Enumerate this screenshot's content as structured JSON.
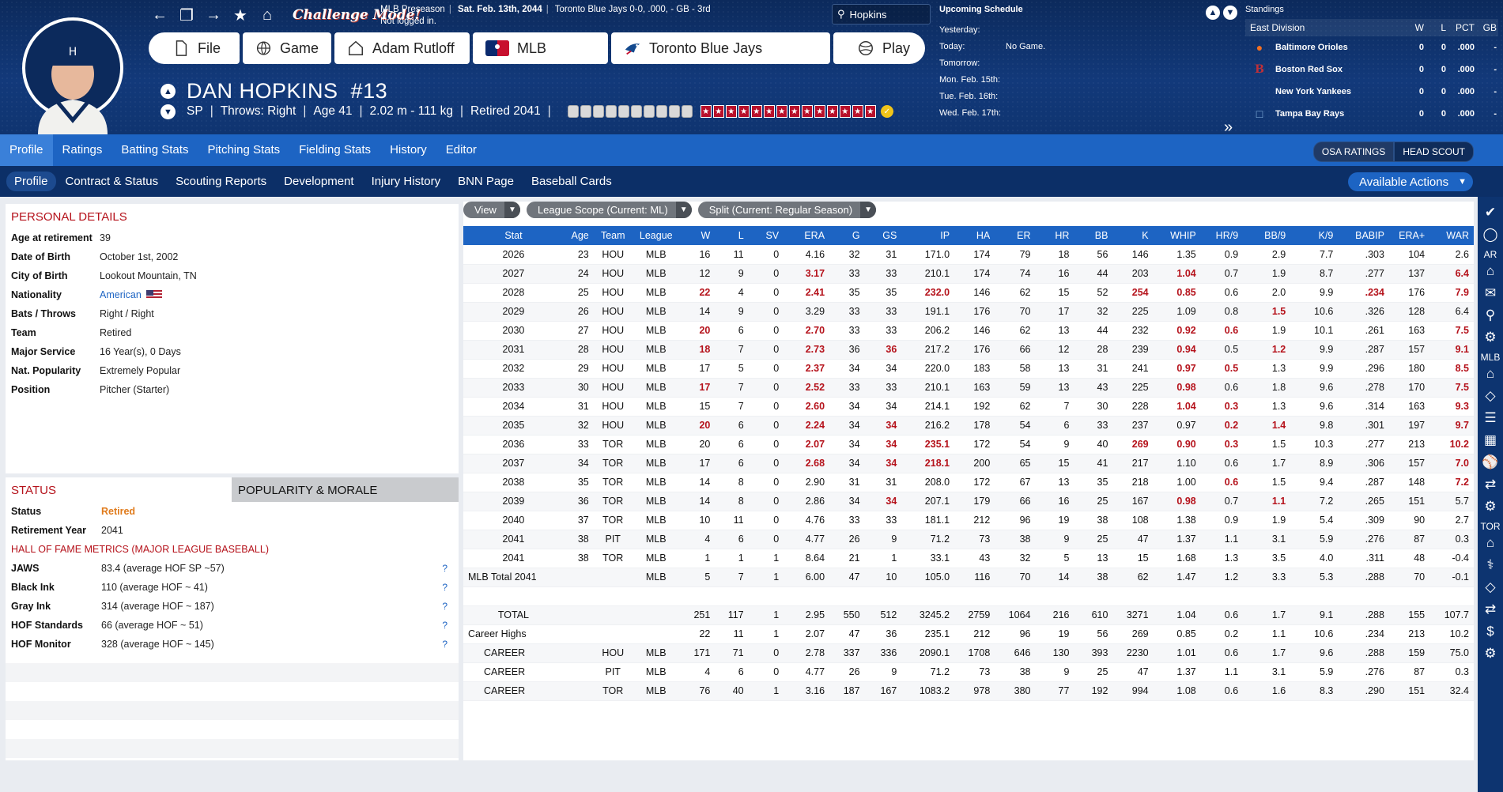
{
  "header": {
    "challenge_label": "Challenge Mode!",
    "info_league": "MLB Preseason",
    "info_date": "Sat. Feb. 13th, 2044",
    "info_team": "Toronto Blue Jays",
    "info_record": "0-0, .000, - GB - 3rd",
    "info_login": "Not logged in.",
    "buttons": {
      "file": "File",
      "game": "Game",
      "manager": "Adam Rutloff",
      "league": "MLB",
      "team": "Toronto Blue Jays",
      "play": "Play"
    },
    "search_value": "Hopkins"
  },
  "schedule": {
    "title": "Upcoming Schedule",
    "rows": [
      {
        "day": "Yesterday:",
        "game": ""
      },
      {
        "day": "Today:",
        "game": "No Game."
      },
      {
        "day": "Tomorrow:",
        "game": ""
      },
      {
        "day": "Mon. Feb. 15th:",
        "game": ""
      },
      {
        "day": "Tue. Feb. 16th:",
        "game": ""
      },
      {
        "day": "Wed. Feb. 17th:",
        "game": ""
      }
    ]
  },
  "standings": {
    "title": "Standings",
    "division": "East Division",
    "cols": [
      "W",
      "L",
      "PCT",
      "GB"
    ],
    "teams": [
      {
        "name": "Baltimore Orioles",
        "w": "0",
        "l": "0",
        "pct": ".000",
        "gb": "-"
      },
      {
        "name": "Boston Red Sox",
        "w": "0",
        "l": "0",
        "pct": ".000",
        "gb": "-"
      },
      {
        "name": "New York Yankees",
        "w": "0",
        "l": "0",
        "pct": ".000",
        "gb": "-"
      },
      {
        "name": "Tampa Bay Rays",
        "w": "0",
        "l": "0",
        "pct": ".000",
        "gb": "-"
      }
    ]
  },
  "player": {
    "name": "DAN HOPKINS",
    "number": "#13",
    "position": "SP",
    "throws": "Throws: Right",
    "age": "Age 41",
    "size": "2.02 m - 111 kg",
    "retired": "Retired 2041"
  },
  "tabs": {
    "main": [
      "Profile",
      "Ratings",
      "Batting Stats",
      "Pitching Stats",
      "Fielding Stats",
      "History",
      "Editor"
    ],
    "sub": [
      "Profile",
      "Contract & Status",
      "Scouting Reports",
      "Development",
      "Injury History",
      "BNN Page",
      "Baseball Cards"
    ],
    "osa": "OSA RATINGS",
    "scout": "HEAD SCOUT",
    "actions": "Available Actions"
  },
  "sidebar": {
    "ar": "AR",
    "mlb": "MLB",
    "tor": "TOR"
  },
  "personal": {
    "title": "PERSONAL DETAILS",
    "rows": [
      {
        "k": "Age at retirement",
        "v": "39"
      },
      {
        "k": "Date of Birth",
        "v": "October 1st, 2002"
      },
      {
        "k": "City of Birth",
        "v": "Lookout Mountain, TN"
      },
      {
        "k": "Nationality",
        "v": "American"
      },
      {
        "k": "Bats / Throws",
        "v": "Right / Right"
      },
      {
        "k": "Team",
        "v": "Retired"
      },
      {
        "k": "Major Service",
        "v": "16 Year(s), 0 Days"
      },
      {
        "k": "Nat. Popularity",
        "v": "Extremely Popular"
      },
      {
        "k": "Position",
        "v": "Pitcher (Starter)"
      }
    ]
  },
  "status": {
    "tab_status": "STATUS",
    "tab_pop": "POPULARITY & MORALE",
    "rows": [
      {
        "k": "Status",
        "v": "Retired"
      },
      {
        "k": "Retirement Year",
        "v": "2041"
      }
    ],
    "hof_title": "HALL OF FAME METRICS (MAJOR LEAGUE BASEBALL)",
    "hof": [
      {
        "k": "JAWS",
        "v": "83.4 (average HOF SP ~57)"
      },
      {
        "k": "Black Ink",
        "v": "110 (average HOF ~ 41)"
      },
      {
        "k": "Gray Ink",
        "v": "314 (average HOF ~ 187)"
      },
      {
        "k": "HOF Standards",
        "v": "66 (average HOF ~ 51)"
      },
      {
        "k": "HOF Monitor",
        "v": "328 (average HOF ~ 145)"
      }
    ],
    "q": "?"
  },
  "filters": {
    "view": "View",
    "scope": "League Scope  (Current: ML)",
    "split": "Split  (Current: Regular Season)"
  },
  "stats": {
    "columns": [
      "Stat",
      "Age",
      "Team",
      "League",
      "W",
      "L",
      "SV",
      "ERA",
      "G",
      "GS",
      "IP",
      "HA",
      "ER",
      "HR",
      "BB",
      "K",
      "WHIP",
      "HR/9",
      "BB/9",
      "K/9",
      "BABIP",
      "ERA+",
      "WAR"
    ],
    "rows": [
      {
        "c": [
          "2026",
          "23",
          "HOU",
          "MLB",
          "16",
          "11",
          "0",
          "4.16",
          "32",
          "31",
          "171.0",
          "174",
          "79",
          "18",
          "56",
          "146",
          "1.35",
          "0.9",
          "2.9",
          "7.7",
          ".303",
          "104",
          "2.6"
        ],
        "hl": []
      },
      {
        "c": [
          "2027",
          "24",
          "HOU",
          "MLB",
          "12",
          "9",
          "0",
          "3.17",
          "33",
          "33",
          "210.1",
          "174",
          "74",
          "16",
          "44",
          "203",
          "1.04",
          "0.7",
          "1.9",
          "8.7",
          ".277",
          "137",
          "6.4"
        ],
        "hl": [
          7,
          16,
          22
        ]
      },
      {
        "c": [
          "2028",
          "25",
          "HOU",
          "MLB",
          "22",
          "4",
          "0",
          "2.41",
          "35",
          "35",
          "232.0",
          "146",
          "62",
          "15",
          "52",
          "254",
          "0.85",
          "0.6",
          "2.0",
          "9.9",
          ".234",
          "176",
          "7.9"
        ],
        "hl": [
          4,
          7,
          10,
          15,
          16,
          20,
          22
        ]
      },
      {
        "c": [
          "2029",
          "26",
          "HOU",
          "MLB",
          "14",
          "9",
          "0",
          "3.29",
          "33",
          "33",
          "191.1",
          "176",
          "70",
          "17",
          "32",
          "225",
          "1.09",
          "0.8",
          "1.5",
          "10.6",
          ".326",
          "128",
          "6.4"
        ],
        "hl": [
          18
        ]
      },
      {
        "c": [
          "2030",
          "27",
          "HOU",
          "MLB",
          "20",
          "6",
          "0",
          "2.70",
          "33",
          "33",
          "206.2",
          "146",
          "62",
          "13",
          "44",
          "232",
          "0.92",
          "0.6",
          "1.9",
          "10.1",
          ".261",
          "163",
          "7.5"
        ],
        "hl": [
          4,
          7,
          16,
          17,
          22
        ]
      },
      {
        "c": [
          "2031",
          "28",
          "HOU",
          "MLB",
          "18",
          "7",
          "0",
          "2.73",
          "36",
          "36",
          "217.2",
          "176",
          "66",
          "12",
          "28",
          "239",
          "0.94",
          "0.5",
          "1.2",
          "9.9",
          ".287",
          "157",
          "9.1"
        ],
        "hl": [
          4,
          7,
          9,
          16,
          18,
          22
        ]
      },
      {
        "c": [
          "2032",
          "29",
          "HOU",
          "MLB",
          "17",
          "5",
          "0",
          "2.37",
          "34",
          "34",
          "220.0",
          "183",
          "58",
          "13",
          "31",
          "241",
          "0.97",
          "0.5",
          "1.3",
          "9.9",
          ".296",
          "180",
          "8.5"
        ],
        "hl": [
          7,
          16,
          17,
          22
        ]
      },
      {
        "c": [
          "2033",
          "30",
          "HOU",
          "MLB",
          "17",
          "7",
          "0",
          "2.52",
          "33",
          "33",
          "210.1",
          "163",
          "59",
          "13",
          "43",
          "225",
          "0.98",
          "0.6",
          "1.8",
          "9.6",
          ".278",
          "170",
          "7.5"
        ],
        "hl": [
          4,
          7,
          16,
          22
        ]
      },
      {
        "c": [
          "2034",
          "31",
          "HOU",
          "MLB",
          "15",
          "7",
          "0",
          "2.60",
          "34",
          "34",
          "214.1",
          "192",
          "62",
          "7",
          "30",
          "228",
          "1.04",
          "0.3",
          "1.3",
          "9.6",
          ".314",
          "163",
          "9.3"
        ],
        "hl": [
          7,
          16,
          17,
          22
        ]
      },
      {
        "c": [
          "2035",
          "32",
          "HOU",
          "MLB",
          "20",
          "6",
          "0",
          "2.24",
          "34",
          "34",
          "216.2",
          "178",
          "54",
          "6",
          "33",
          "237",
          "0.97",
          "0.2",
          "1.4",
          "9.8",
          ".301",
          "197",
          "9.7"
        ],
        "hl": [
          4,
          7,
          9,
          17,
          18,
          22
        ]
      },
      {
        "c": [
          "2036",
          "33",
          "TOR",
          "MLB",
          "20",
          "6",
          "0",
          "2.07",
          "34",
          "34",
          "235.1",
          "172",
          "54",
          "9",
          "40",
          "269",
          "0.90",
          "0.3",
          "1.5",
          "10.3",
          ".277",
          "213",
          "10.2"
        ],
        "hl": [
          7,
          9,
          10,
          15,
          16,
          17,
          22
        ]
      },
      {
        "c": [
          "2037",
          "34",
          "TOR",
          "MLB",
          "17",
          "6",
          "0",
          "2.68",
          "34",
          "34",
          "218.1",
          "200",
          "65",
          "15",
          "41",
          "217",
          "1.10",
          "0.6",
          "1.7",
          "8.9",
          ".306",
          "157",
          "7.0"
        ],
        "hl": [
          7,
          9,
          10,
          22
        ]
      },
      {
        "c": [
          "2038",
          "35",
          "TOR",
          "MLB",
          "14",
          "8",
          "0",
          "2.90",
          "31",
          "31",
          "208.0",
          "172",
          "67",
          "13",
          "35",
          "218",
          "1.00",
          "0.6",
          "1.5",
          "9.4",
          ".287",
          "148",
          "7.2"
        ],
        "hl": [
          17,
          22
        ]
      },
      {
        "c": [
          "2039",
          "36",
          "TOR",
          "MLB",
          "14",
          "8",
          "0",
          "2.86",
          "34",
          "34",
          "207.1",
          "179",
          "66",
          "16",
          "25",
          "167",
          "0.98",
          "0.7",
          "1.1",
          "7.2",
          ".265",
          "151",
          "5.7"
        ],
        "hl": [
          9,
          16,
          18
        ]
      },
      {
        "c": [
          "2040",
          "37",
          "TOR",
          "MLB",
          "10",
          "11",
          "0",
          "4.76",
          "33",
          "33",
          "181.1",
          "212",
          "96",
          "19",
          "38",
          "108",
          "1.38",
          "0.9",
          "1.9",
          "5.4",
          ".309",
          "90",
          "2.7"
        ],
        "hl": []
      },
      {
        "c": [
          "2041",
          "38",
          "PIT",
          "MLB",
          "4",
          "6",
          "0",
          "4.77",
          "26",
          "9",
          "71.2",
          "73",
          "38",
          "9",
          "25",
          "47",
          "1.37",
          "1.1",
          "3.1",
          "5.9",
          ".276",
          "87",
          "0.3"
        ],
        "hl": []
      },
      {
        "c": [
          "2041",
          "38",
          "TOR",
          "MLB",
          "1",
          "1",
          "1",
          "8.64",
          "21",
          "1",
          "33.1",
          "43",
          "32",
          "5",
          "13",
          "15",
          "1.68",
          "1.3",
          "3.5",
          "4.0",
          ".311",
          "48",
          "-0.4"
        ],
        "hl": []
      },
      {
        "c": [
          "MLB Total 2041",
          "",
          "",
          "MLB",
          "5",
          "7",
          "1",
          "6.00",
          "47",
          "10",
          "105.0",
          "116",
          "70",
          "14",
          "38",
          "62",
          "1.47",
          "1.2",
          "3.3",
          "5.3",
          ".288",
          "70",
          "-0.1"
        ],
        "hl": []
      },
      {
        "c": [
          "",
          "",
          "",
          "",
          "",
          "",
          "",
          "",
          "",
          "",
          "",
          "",
          "",
          "",
          "",
          "",
          "",
          "",
          "",
          "",
          "",
          "",
          ""
        ],
        "hl": []
      },
      {
        "c": [
          "TOTAL",
          "",
          "",
          "",
          "251",
          "117",
          "1",
          "2.95",
          "550",
          "512",
          "3245.2",
          "2759",
          "1064",
          "216",
          "610",
          "3271",
          "1.04",
          "0.6",
          "1.7",
          "9.1",
          ".288",
          "155",
          "107.7"
        ],
        "hl": []
      },
      {
        "c": [
          "Career Highs",
          "",
          "",
          "",
          "22",
          "11",
          "1",
          "2.07",
          "47",
          "36",
          "235.1",
          "212",
          "96",
          "19",
          "56",
          "269",
          "0.85",
          "0.2",
          "1.1",
          "10.6",
          ".234",
          "213",
          "10.2"
        ],
        "hl": []
      },
      {
        "c": [
          "CAREER",
          "",
          "HOU",
          "MLB",
          "171",
          "71",
          "0",
          "2.78",
          "337",
          "336",
          "2090.1",
          "1708",
          "646",
          "130",
          "393",
          "2230",
          "1.01",
          "0.6",
          "1.7",
          "9.6",
          ".288",
          "159",
          "75.0"
        ],
        "hl": []
      },
      {
        "c": [
          "CAREER",
          "",
          "PIT",
          "MLB",
          "4",
          "6",
          "0",
          "4.77",
          "26",
          "9",
          "71.2",
          "73",
          "38",
          "9",
          "25",
          "47",
          "1.37",
          "1.1",
          "3.1",
          "5.9",
          ".276",
          "87",
          "0.3"
        ],
        "hl": []
      },
      {
        "c": [
          "CAREER",
          "",
          "TOR",
          "MLB",
          "76",
          "40",
          "1",
          "3.16",
          "187",
          "167",
          "1083.2",
          "978",
          "380",
          "77",
          "192",
          "994",
          "1.08",
          "0.6",
          "1.6",
          "8.3",
          ".290",
          "151",
          "32.4"
        ],
        "hl": []
      }
    ]
  },
  "colors": {
    "accent": "#1d64c3",
    "highlight": "#b5121b",
    "header": "#0c2a5c"
  }
}
